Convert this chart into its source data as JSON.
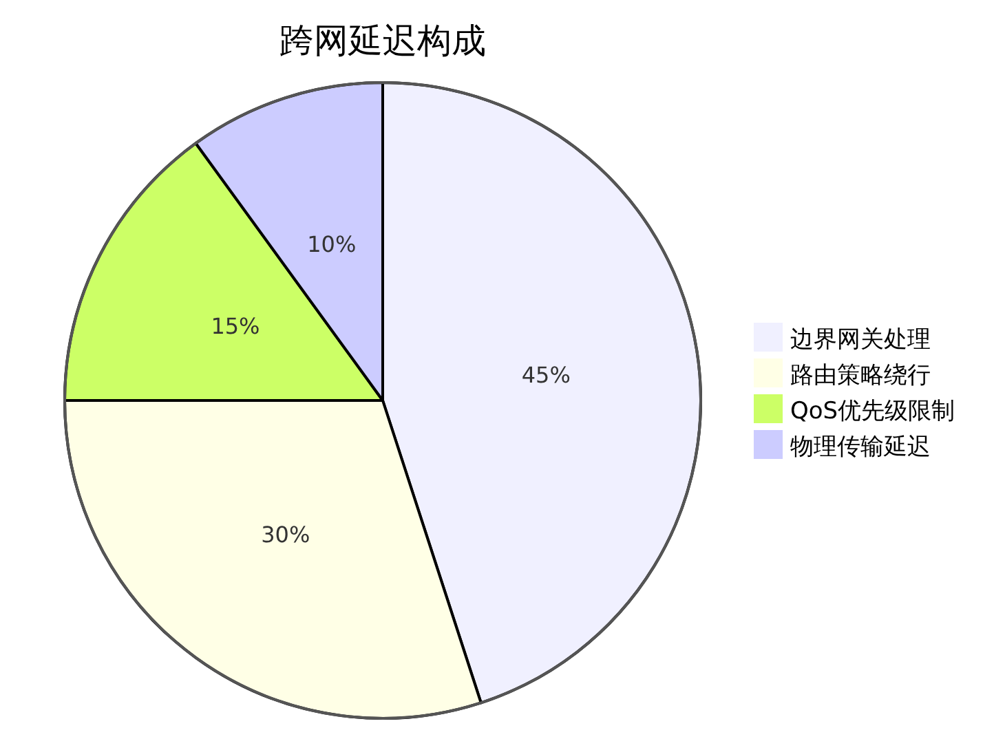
{
  "chart_data": {
    "type": "pie",
    "title": "跨网延迟构成",
    "categories": [
      "边界网关处理",
      "路由策略绕行",
      "QoS优先级限制",
      "物理传输延迟"
    ],
    "values": [
      45,
      30,
      15,
      10
    ],
    "colors": [
      "#f0f0ff",
      "#ffffe6",
      "#ccff66",
      "#ccccff"
    ],
    "value_labels": [
      "45%",
      "30%",
      "15%",
      "10%"
    ],
    "legend": "right"
  }
}
